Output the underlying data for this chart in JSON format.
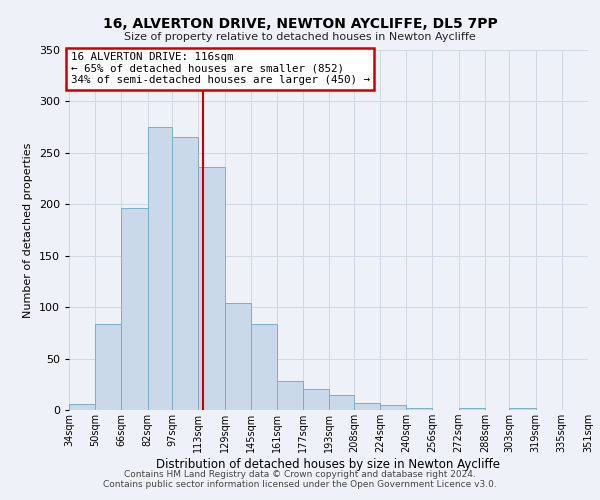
{
  "title": "16, ALVERTON DRIVE, NEWTON AYCLIFFE, DL5 7PP",
  "subtitle": "Size of property relative to detached houses in Newton Aycliffe",
  "xlabel": "Distribution of detached houses by size in Newton Aycliffe",
  "ylabel": "Number of detached properties",
  "bar_values": [
    6,
    84,
    196,
    275,
    265,
    236,
    104,
    84,
    28,
    20,
    15,
    7,
    5,
    2,
    0,
    2,
    0,
    2,
    0,
    0
  ],
  "bin_edges": [
    34,
    50,
    66,
    82,
    97,
    113,
    129,
    145,
    161,
    177,
    193,
    208,
    224,
    240,
    256,
    272,
    288,
    303,
    319,
    335,
    351
  ],
  "bin_labels": [
    "34sqm",
    "50sqm",
    "66sqm",
    "82sqm",
    "97sqm",
    "113sqm",
    "129sqm",
    "145sqm",
    "161sqm",
    "177sqm",
    "193sqm",
    "208sqm",
    "224sqm",
    "240sqm",
    "256sqm",
    "272sqm",
    "288sqm",
    "303sqm",
    "319sqm",
    "335sqm",
    "351sqm"
  ],
  "bar_color": "#c9d9ea",
  "bar_edge_color": "#7aafc8",
  "vline_x": 116,
  "vline_color": "#cc0000",
  "ylim": [
    0,
    350
  ],
  "yticks": [
    0,
    50,
    100,
    150,
    200,
    250,
    300,
    350
  ],
  "annotation_title": "16 ALVERTON DRIVE: 116sqm",
  "annotation_line1": "← 65% of detached houses are smaller (852)",
  "annotation_line2": "34% of semi-detached houses are larger (450) →",
  "annotation_box_color": "#ffffff",
  "annotation_box_edge": "#cc0000",
  "grid_color": "#d0d8e4",
  "background_color": "#eef2f8",
  "footer1": "Contains HM Land Registry data © Crown copyright and database right 2024.",
  "footer2": "Contains public sector information licensed under the Open Government Licence v3.0."
}
